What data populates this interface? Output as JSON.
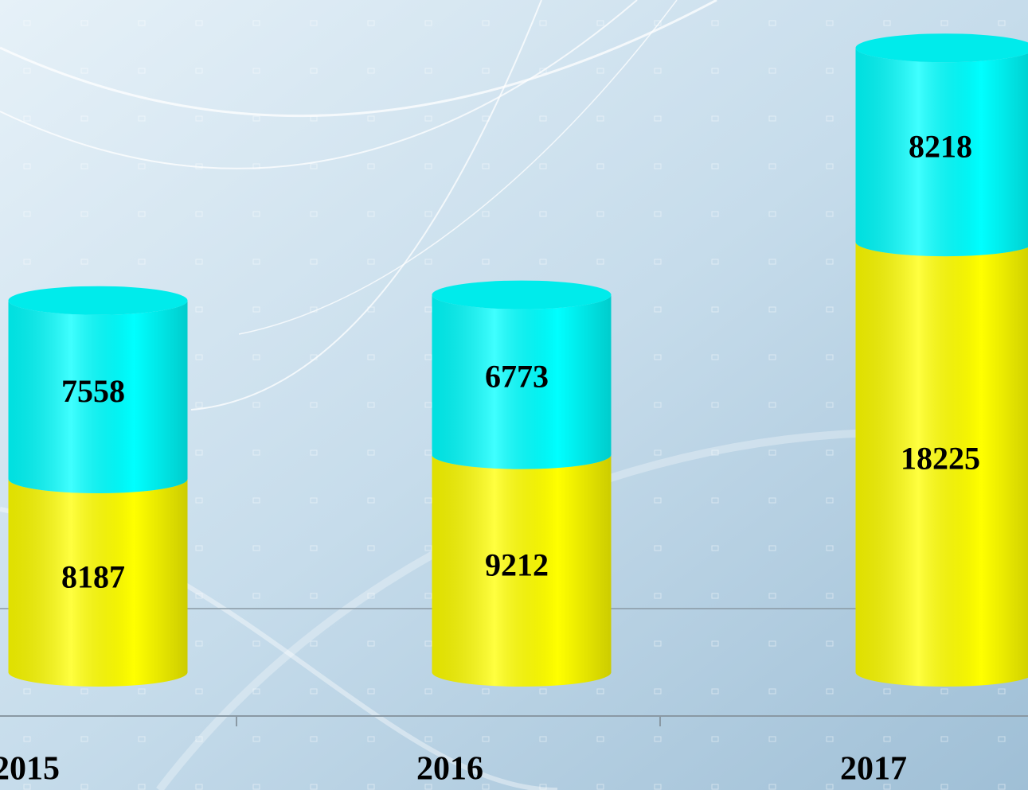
{
  "chart_data": {
    "type": "stacked-cylinder",
    "categories": [
      "2015",
      "2016",
      "2017"
    ],
    "series": [
      {
        "color": "#ffff00",
        "values": [
          8187,
          9212,
          18225
        ]
      },
      {
        "color": "#00ffff",
        "values": [
          7558,
          6773,
          8218
        ]
      }
    ],
    "ylim": [
      0,
      28000
    ]
  }
}
